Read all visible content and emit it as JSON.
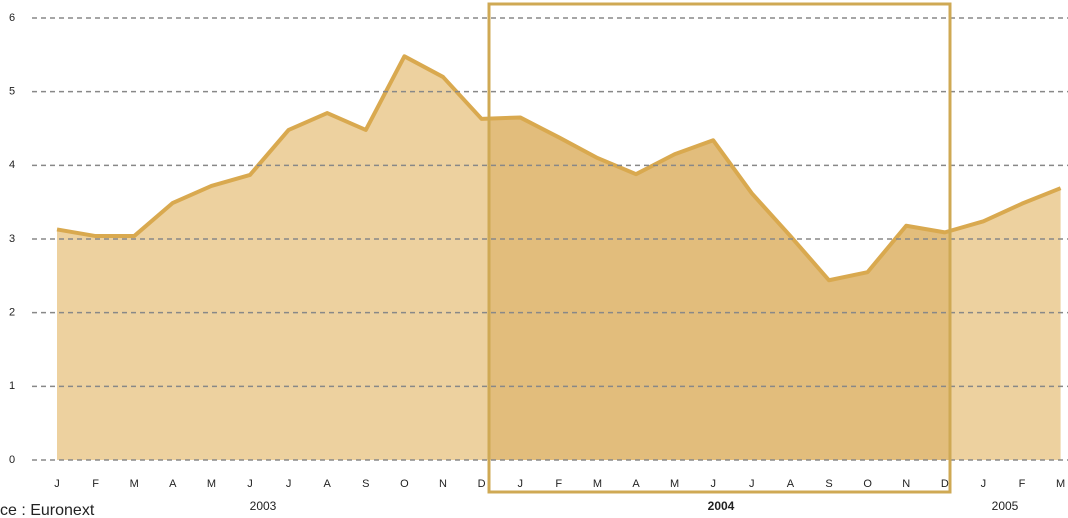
{
  "chart_data": {
    "type": "area",
    "categories": [
      "J",
      "F",
      "M",
      "A",
      "M",
      "J",
      "J",
      "A",
      "S",
      "O",
      "N",
      "D",
      "J",
      "F",
      "M",
      "A",
      "M",
      "J",
      "J",
      "A",
      "S",
      "O",
      "N",
      "D",
      "J",
      "F",
      "M"
    ],
    "values": [
      3.13,
      3.04,
      3.04,
      3.49,
      3.72,
      3.87,
      4.48,
      4.71,
      4.48,
      5.48,
      5.2,
      4.63,
      4.65,
      4.38,
      4.1,
      3.88,
      4.15,
      4.34,
      3.62,
      3.04,
      2.44,
      2.55,
      3.18,
      3.09,
      3.24,
      3.48,
      3.69
    ],
    "year_labels": [
      "2003",
      "2004",
      "2005"
    ],
    "color": "#edd19f",
    "line_color": "#d9a94f",
    "highlight_color": "#e2bd7c",
    "ylim": [
      0,
      6
    ],
    "yticks": [
      0,
      1,
      2,
      3,
      4,
      5,
      6
    ],
    "grid": true,
    "source": "ce : Euronext"
  }
}
